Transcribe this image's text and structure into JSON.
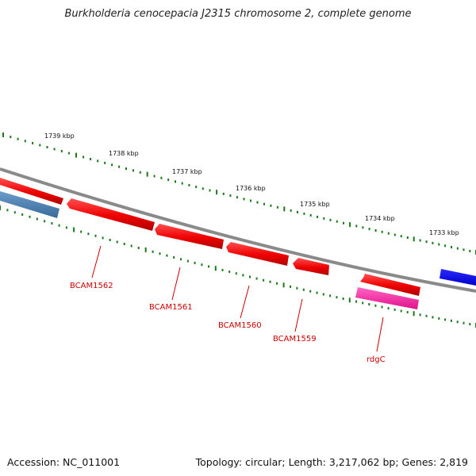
{
  "title": "Burkholderia cenocepacia J2315 chromosome 2, complete genome",
  "footer": {
    "accession": "Accession: NC_011001",
    "summary": "Topology: circular; Length: 3,217,062 bp; Genes: 2,819"
  },
  "kbp_labels": [
    "1739 kbp",
    "1738 kbp",
    "1737 kbp",
    "1736 kbp",
    "1735 kbp",
    "1734 kbp",
    "1733 kbp"
  ],
  "genes": [
    {
      "name": "BCAM1562",
      "color": "#ff0000",
      "strand": "reverse"
    },
    {
      "name": "BCAM1561",
      "color": "#ff0000",
      "strand": "reverse"
    },
    {
      "name": "BCAM1560",
      "color": "#ff0000",
      "strand": "reverse"
    },
    {
      "name": "BCAM1559",
      "color": "#ff0000",
      "strand": "reverse"
    },
    {
      "name": "rdgC",
      "color": "#ff0000",
      "strand": "forward"
    }
  ],
  "colors": {
    "backbone": "#808080",
    "tick": "#1a7a1a",
    "cds": "#ff0000",
    "rna": "#ff33aa",
    "other_strand_a": "#4682b4",
    "other_strand_b": "#0000ff",
    "label": "#cc0000"
  }
}
